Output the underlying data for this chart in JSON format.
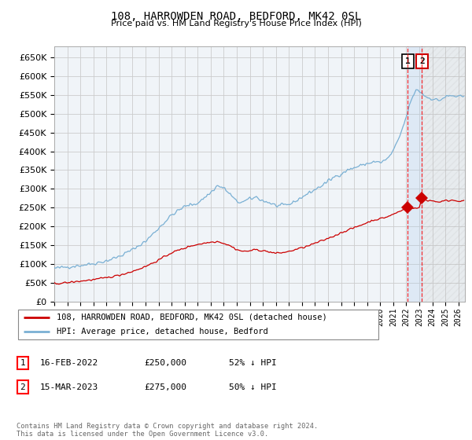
{
  "title": "108, HARROWDEN ROAD, BEDFORD, MK42 0SL",
  "subtitle": "Price paid vs. HM Land Registry's House Price Index (HPI)",
  "ylim": [
    0,
    680000
  ],
  "yticks": [
    0,
    50000,
    100000,
    150000,
    200000,
    250000,
    300000,
    350000,
    400000,
    450000,
    500000,
    550000,
    600000,
    650000
  ],
  "xlim_start": 1995.0,
  "xlim_end": 2026.5,
  "hpi_color": "#7ab0d4",
  "price_color": "#cc0000",
  "grid_color": "#cccccc",
  "background_color": "#ffffff",
  "legend_entry1": "108, HARROWDEN ROAD, BEDFORD, MK42 0SL (detached house)",
  "legend_entry2": "HPI: Average price, detached house, Bedford",
  "annotation1_label": "1",
  "annotation1_date": "16-FEB-2022",
  "annotation1_price": "£250,000",
  "annotation1_hpi": "52% ↓ HPI",
  "annotation2_label": "2",
  "annotation2_date": "15-MAR-2023",
  "annotation2_price": "£275,000",
  "annotation2_hpi": "50% ↓ HPI",
  "footer": "Contains HM Land Registry data © Crown copyright and database right 2024.\nThis data is licensed under the Open Government Licence v3.0.",
  "sale1_x": 2022.125,
  "sale1_y": 250000,
  "sale2_x": 2023.21,
  "sale2_y": 275000,
  "vline1_x": 2022.125,
  "vline2_x": 2023.21
}
